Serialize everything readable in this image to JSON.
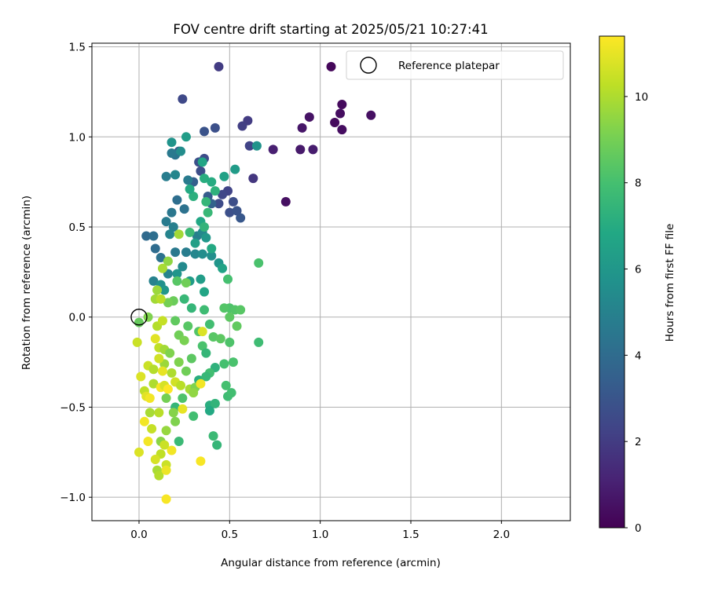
{
  "chart_data": {
    "type": "scatter",
    "title": "FOV centre drift starting at 2025/05/21 10:27:41",
    "xlabel": "Angular distance from reference (arcmin)",
    "ylabel": "Rotation from reference (arcmin)",
    "colorbar_label": "Hours from first FF file",
    "xlim": [
      -0.26,
      2.38
    ],
    "ylim": [
      -1.13,
      1.52
    ],
    "xticks": [
      0.0,
      0.5,
      1.0,
      1.5,
      2.0
    ],
    "yticks": [
      -1.0,
      -0.5,
      0.0,
      0.5,
      1.0,
      1.5
    ],
    "colorbar_range": [
      0,
      11.4
    ],
    "colorbar_ticks": [
      0,
      2,
      4,
      6,
      8,
      10
    ],
    "colormap": "viridis",
    "grid": true,
    "legend": {
      "placement": "top-right",
      "entries": [
        "Reference platepar"
      ]
    },
    "reference_point": {
      "x": 0.0,
      "y": 0.0
    },
    "points": [
      [
        1.06,
        1.39,
        0.2
      ],
      [
        1.08,
        1.08,
        0.3
      ],
      [
        1.12,
        1.18,
        0.3
      ],
      [
        1.11,
        1.13,
        0.4
      ],
      [
        1.12,
        1.04,
        0.4
      ],
      [
        1.28,
        1.12,
        0.5
      ],
      [
        0.94,
        1.11,
        0.6
      ],
      [
        0.9,
        1.05,
        0.7
      ],
      [
        0.89,
        0.93,
        0.8
      ],
      [
        0.96,
        0.93,
        0.9
      ],
      [
        0.74,
        0.93,
        1.0
      ],
      [
        0.81,
        0.64,
        0.5
      ],
      [
        0.44,
        1.39,
        2.0
      ],
      [
        0.6,
        1.09,
        2.0
      ],
      [
        0.57,
        1.06,
        2.1
      ],
      [
        0.61,
        0.95,
        2.3
      ],
      [
        0.24,
        1.21,
        2.5
      ],
      [
        0.42,
        1.05,
        2.8
      ],
      [
        0.36,
        1.03,
        2.9
      ],
      [
        0.22,
        0.92,
        3.0
      ],
      [
        0.36,
        0.88,
        2.6
      ],
      [
        0.33,
        0.86,
        2.8
      ],
      [
        0.34,
        0.81,
        2.7
      ],
      [
        0.63,
        0.77,
        1.8
      ],
      [
        0.49,
        0.7,
        2.3
      ],
      [
        0.46,
        0.68,
        2.4
      ],
      [
        0.44,
        0.63,
        2.6
      ],
      [
        0.52,
        0.64,
        2.7
      ],
      [
        0.5,
        0.58,
        2.8
      ],
      [
        0.56,
        0.55,
        3.1
      ],
      [
        0.54,
        0.59,
        2.9
      ],
      [
        0.38,
        0.67,
        3.3
      ],
      [
        0.4,
        0.63,
        3.6
      ],
      [
        0.3,
        0.75,
        3.4
      ],
      [
        0.27,
        0.76,
        4.7
      ],
      [
        0.2,
        0.79,
        5.2
      ],
      [
        0.2,
        0.9,
        4.4
      ],
      [
        0.18,
        0.91,
        4.6
      ],
      [
        0.23,
        0.92,
        5.5
      ],
      [
        0.18,
        0.97,
        5.8
      ],
      [
        0.26,
        1.0,
        6.3
      ],
      [
        0.15,
        0.78,
        4.8
      ],
      [
        0.21,
        0.65,
        4.1
      ],
      [
        0.25,
        0.6,
        4.3
      ],
      [
        0.18,
        0.58,
        4.5
      ],
      [
        0.15,
        0.53,
        4.7
      ],
      [
        0.19,
        0.5,
        4.9
      ],
      [
        0.17,
        0.46,
        5.1
      ],
      [
        0.04,
        0.45,
        3.9
      ],
      [
        0.08,
        0.45,
        4.1
      ],
      [
        0.09,
        0.38,
        4.0
      ],
      [
        0.12,
        0.33,
        4.3
      ],
      [
        0.2,
        0.36,
        4.6
      ],
      [
        0.26,
        0.36,
        4.8
      ],
      [
        0.31,
        0.35,
        5.2
      ],
      [
        0.35,
        0.35,
        5.5
      ],
      [
        0.4,
        0.34,
        5.6
      ],
      [
        0.24,
        0.28,
        5.4
      ],
      [
        0.21,
        0.24,
        5.9
      ],
      [
        0.16,
        0.24,
        5.1
      ],
      [
        0.08,
        0.2,
        5.0
      ],
      [
        0.12,
        0.18,
        5.7
      ],
      [
        0.14,
        0.15,
        6.0
      ],
      [
        0.28,
        0.2,
        6.2
      ],
      [
        0.34,
        0.21,
        6.3
      ],
      [
        0.36,
        0.14,
        6.7
      ],
      [
        0.32,
        0.45,
        4.9
      ],
      [
        0.35,
        0.47,
        5.3
      ],
      [
        0.31,
        0.41,
        6.4
      ],
      [
        0.37,
        0.44,
        6.0
      ],
      [
        0.4,
        0.38,
        6.9
      ],
      [
        0.44,
        0.3,
        5.9
      ],
      [
        0.46,
        0.27,
        6.6
      ],
      [
        0.47,
        0.78,
        6.5
      ],
      [
        0.53,
        0.82,
        6.2
      ],
      [
        0.65,
        0.95,
        5.8
      ],
      [
        0.35,
        0.86,
        6.7
      ],
      [
        0.36,
        0.77,
        7.1
      ],
      [
        0.4,
        0.75,
        7.0
      ],
      [
        0.42,
        0.7,
        7.3
      ],
      [
        0.37,
        0.64,
        7.5
      ],
      [
        0.3,
        0.67,
        7.2
      ],
      [
        0.28,
        0.71,
        6.9
      ],
      [
        0.38,
        0.58,
        7.6
      ],
      [
        0.34,
        0.53,
        6.8
      ],
      [
        0.36,
        0.5,
        7.4
      ],
      [
        0.28,
        0.47,
        7.7
      ],
      [
        0.66,
        0.3,
        8.1
      ],
      [
        0.49,
        0.21,
        8.0
      ],
      [
        0.5,
        0.05,
        8.2
      ],
      [
        0.53,
        0.04,
        8.3
      ],
      [
        0.56,
        0.04,
        8.4
      ],
      [
        0.5,
        0.0,
        8.5
      ],
      [
        0.54,
        -0.05,
        8.6
      ],
      [
        0.47,
        0.05,
        8.3
      ],
      [
        0.36,
        0.04,
        7.8
      ],
      [
        0.29,
        0.05,
        7.5
      ],
      [
        0.25,
        0.1,
        7.6
      ],
      [
        0.19,
        0.09,
        8.8
      ],
      [
        0.16,
        0.08,
        9.0
      ],
      [
        0.21,
        0.2,
        8.4
      ],
      [
        0.26,
        0.19,
        8.9
      ],
      [
        0.22,
        0.46,
        9.8
      ],
      [
        0.16,
        0.31,
        9.5
      ],
      [
        0.13,
        0.27,
        9.9
      ],
      [
        0.1,
        0.15,
        9.7
      ],
      [
        0.09,
        0.1,
        9.8
      ],
      [
        0.12,
        0.1,
        10.2
      ],
      [
        0.0,
        -0.03,
        8.7
      ],
      [
        0.05,
        0.0,
        9.2
      ],
      [
        0.1,
        -0.05,
        10.1
      ],
      [
        0.13,
        -0.02,
        10.4
      ],
      [
        0.2,
        -0.02,
        8.6
      ],
      [
        0.27,
        -0.05,
        8.4
      ],
      [
        0.39,
        -0.04,
        7.9
      ],
      [
        0.33,
        -0.08,
        8.3
      ],
      [
        0.35,
        -0.08,
        10.8
      ],
      [
        0.22,
        -0.1,
        8.9
      ],
      [
        0.25,
        -0.13,
        9.1
      ],
      [
        0.35,
        -0.16,
        8.1
      ],
      [
        0.37,
        -0.2,
        7.5
      ],
      [
        0.41,
        -0.11,
        8.4
      ],
      [
        0.45,
        -0.12,
        8.5
      ],
      [
        0.5,
        -0.14,
        8.2
      ],
      [
        0.66,
        -0.14,
        7.8
      ],
      [
        0.47,
        -0.26,
        8.0
      ],
      [
        0.52,
        -0.25,
        8.1
      ],
      [
        0.42,
        -0.28,
        7.3
      ],
      [
        0.39,
        -0.31,
        7.9
      ],
      [
        0.33,
        -0.35,
        7.1
      ],
      [
        0.37,
        -0.33,
        7.6
      ],
      [
        0.29,
        -0.23,
        8.5
      ],
      [
        0.26,
        -0.3,
        8.9
      ],
      [
        0.22,
        -0.25,
        9.2
      ],
      [
        0.18,
        -0.31,
        10.0
      ],
      [
        0.14,
        -0.26,
        9.7
      ],
      [
        0.11,
        -0.23,
        10.6
      ],
      [
        0.09,
        -0.12,
        10.9
      ],
      [
        0.11,
        -0.17,
        10.3
      ],
      [
        0.14,
        -0.18,
        9.8
      ],
      [
        0.17,
        -0.2,
        9.2
      ],
      [
        0.05,
        -0.27,
        10.5
      ],
      [
        0.08,
        -0.29,
        10.1
      ],
      [
        0.13,
        -0.3,
        11.0
      ],
      [
        -0.01,
        -0.14,
        10.5
      ],
      [
        0.01,
        -0.33,
        10.8
      ],
      [
        0.03,
        -0.41,
        10.3
      ],
      [
        0.04,
        -0.44,
        10.9
      ],
      [
        0.06,
        -0.45,
        11.2
      ],
      [
        0.08,
        -0.37,
        10.0
      ],
      [
        0.12,
        -0.39,
        11.3
      ],
      [
        0.14,
        -0.38,
        10.7
      ],
      [
        0.16,
        -0.4,
        11.4
      ],
      [
        0.2,
        -0.36,
        10.6
      ],
      [
        0.23,
        -0.38,
        10.2
      ],
      [
        0.28,
        -0.4,
        9.9
      ],
      [
        0.31,
        -0.39,
        9.2
      ],
      [
        0.34,
        -0.37,
        11.2
      ],
      [
        0.3,
        -0.42,
        9.5
      ],
      [
        0.24,
        -0.45,
        8.2
      ],
      [
        0.2,
        -0.5,
        7.5
      ],
      [
        0.19,
        -0.53,
        9.3
      ],
      [
        0.15,
        -0.45,
        9.0
      ],
      [
        0.11,
        -0.53,
        10.2
      ],
      [
        0.06,
        -0.53,
        9.9
      ],
      [
        0.03,
        -0.58,
        11.2
      ],
      [
        0.07,
        -0.62,
        10.4
      ],
      [
        0.12,
        -0.69,
        9.4
      ],
      [
        0.15,
        -0.63,
        9.6
      ],
      [
        0.2,
        -0.58,
        9.2
      ],
      [
        0.22,
        -0.69,
        7.7
      ],
      [
        0.24,
        -0.51,
        11.0
      ],
      [
        0.3,
        -0.55,
        7.9
      ],
      [
        0.39,
        -0.49,
        7.1
      ],
      [
        0.42,
        -0.48,
        7.4
      ],
      [
        0.49,
        -0.44,
        7.8
      ],
      [
        0.51,
        -0.42,
        7.9
      ],
      [
        0.48,
        -0.38,
        8.0
      ],
      [
        0.39,
        -0.52,
        6.9
      ],
      [
        0.41,
        -0.66,
        7.7
      ],
      [
        0.43,
        -0.71,
        7.5
      ],
      [
        0.34,
        -0.8,
        11.3
      ],
      [
        0.18,
        -0.74,
        11.2
      ],
      [
        0.14,
        -0.71,
        10.5
      ],
      [
        0.12,
        -0.76,
        10.3
      ],
      [
        0.05,
        -0.69,
        11.2
      ],
      [
        0.09,
        -0.79,
        10.7
      ],
      [
        0.1,
        -0.85,
        9.9
      ],
      [
        0.11,
        -0.88,
        10.1
      ],
      [
        0.15,
        -0.82,
        10.5
      ],
      [
        0.15,
        -0.85,
        11.1
      ],
      [
        0.0,
        -0.75,
        10.8
      ],
      [
        0.15,
        -1.01,
        11.3
      ]
    ]
  }
}
